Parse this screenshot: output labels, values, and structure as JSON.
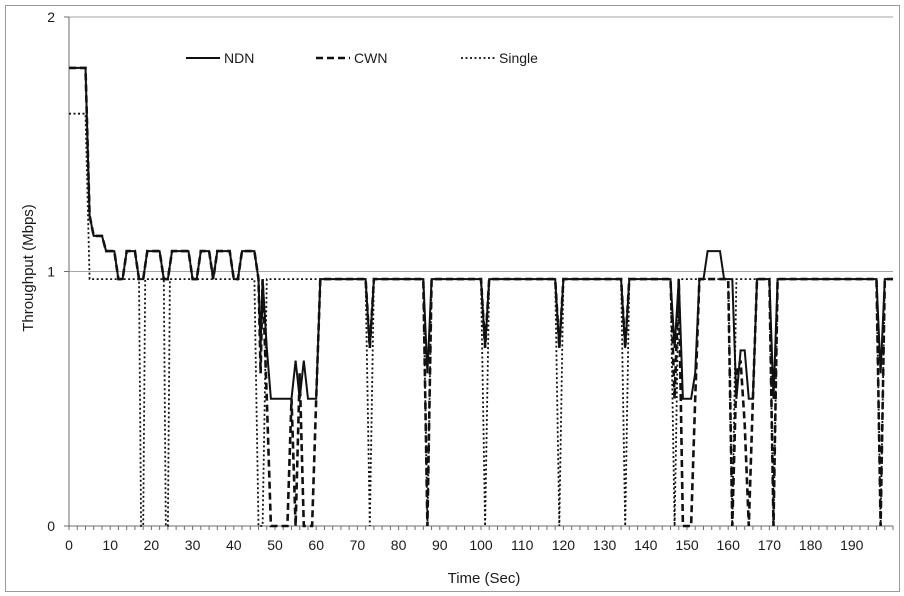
{
  "chart_data": {
    "type": "line",
    "title": "",
    "xlabel": "Time (Sec)",
    "ylabel": "Throughput (Mbps)",
    "xlim": [
      0,
      200
    ],
    "ylim": [
      0,
      2
    ],
    "x_ticks": [
      0,
      10,
      20,
      30,
      40,
      50,
      60,
      70,
      80,
      90,
      100,
      110,
      120,
      130,
      140,
      150,
      160,
      170,
      180,
      190
    ],
    "y_ticks": [
      0,
      1,
      2
    ],
    "grid": "horizontal major gridlines",
    "legend_position": "top",
    "series": [
      {
        "name": "NDN",
        "style": "solid",
        "points": [
          [
            0,
            1.8
          ],
          [
            4,
            1.8
          ],
          [
            5,
            1.22
          ],
          [
            6,
            1.14
          ],
          [
            8,
            1.14
          ],
          [
            9,
            1.08
          ],
          [
            11,
            1.08
          ],
          [
            12,
            0.97
          ],
          [
            13,
            0.97
          ],
          [
            14,
            1.08
          ],
          [
            16,
            1.08
          ],
          [
            17,
            0.97
          ],
          [
            18,
            0.97
          ],
          [
            19,
            1.08
          ],
          [
            22,
            1.08
          ],
          [
            23,
            0.97
          ],
          [
            24,
            0.97
          ],
          [
            25,
            1.08
          ],
          [
            29,
            1.08
          ],
          [
            30,
            0.97
          ],
          [
            31,
            0.97
          ],
          [
            32,
            1.08
          ],
          [
            34,
            1.08
          ],
          [
            35,
            0.97
          ],
          [
            36,
            1.08
          ],
          [
            39,
            1.08
          ],
          [
            40,
            0.97
          ],
          [
            41,
            0.97
          ],
          [
            42,
            1.08
          ],
          [
            45,
            1.08
          ],
          [
            46,
            0.97
          ],
          [
            46.5,
            0.7
          ],
          [
            47,
            0.97
          ],
          [
            48,
            0.7
          ],
          [
            49,
            0.5
          ],
          [
            54,
            0.5
          ],
          [
            55,
            0.65
          ],
          [
            56,
            0.5
          ],
          [
            57,
            0.65
          ],
          [
            58,
            0.5
          ],
          [
            60,
            0.5
          ],
          [
            61,
            0.97
          ],
          [
            72,
            0.97
          ],
          [
            73,
            0.7
          ],
          [
            74,
            0.97
          ],
          [
            86,
            0.97
          ],
          [
            87,
            0.6
          ],
          [
            88,
            0.97
          ],
          [
            100,
            0.97
          ],
          [
            101,
            0.7
          ],
          [
            102,
            0.97
          ],
          [
            118,
            0.97
          ],
          [
            119,
            0.7
          ],
          [
            120,
            0.97
          ],
          [
            134,
            0.97
          ],
          [
            135,
            0.7
          ],
          [
            136,
            0.97
          ],
          [
            146,
            0.97
          ],
          [
            147,
            0.7
          ],
          [
            148,
            0.97
          ],
          [
            149,
            0.5
          ],
          [
            151,
            0.5
          ],
          [
            152,
            0.6
          ],
          [
            153,
            0.97
          ],
          [
            154,
            0.97
          ],
          [
            155,
            1.08
          ],
          [
            158,
            1.08
          ],
          [
            159,
            0.97
          ],
          [
            161,
            0.97
          ],
          [
            162,
            0.5
          ],
          [
            163,
            0.69
          ],
          [
            164,
            0.69
          ],
          [
            165,
            0.5
          ],
          [
            166,
            0.5
          ],
          [
            167,
            0.97
          ],
          [
            170,
            0.97
          ],
          [
            171,
            0.5
          ],
          [
            172,
            0.97
          ],
          [
            196,
            0.97
          ],
          [
            197,
            0.6
          ],
          [
            198,
            0.97
          ],
          [
            200,
            0.97
          ]
        ]
      },
      {
        "name": "CWN",
        "style": "dashed",
        "points": [
          [
            0,
            1.8
          ],
          [
            4,
            1.8
          ],
          [
            5,
            1.22
          ],
          [
            6,
            1.14
          ],
          [
            8,
            1.14
          ],
          [
            9,
            1.08
          ],
          [
            11,
            1.08
          ],
          [
            12,
            0.97
          ],
          [
            13,
            0.97
          ],
          [
            14,
            1.08
          ],
          [
            16,
            1.08
          ],
          [
            17,
            0.97
          ],
          [
            18,
            0.97
          ],
          [
            19,
            1.08
          ],
          [
            22,
            1.08
          ],
          [
            23,
            0.97
          ],
          [
            24,
            0.97
          ],
          [
            25,
            1.08
          ],
          [
            29,
            1.08
          ],
          [
            30,
            0.97
          ],
          [
            31,
            0.97
          ],
          [
            32,
            1.08
          ],
          [
            34,
            1.08
          ],
          [
            35,
            0.97
          ],
          [
            36,
            1.08
          ],
          [
            39,
            1.08
          ],
          [
            40,
            0.97
          ],
          [
            41,
            0.97
          ],
          [
            42,
            1.08
          ],
          [
            45,
            1.08
          ],
          [
            46,
            0.97
          ],
          [
            46.5,
            0.6
          ],
          [
            47,
            0.97
          ],
          [
            48,
            0.5
          ],
          [
            49,
            0
          ],
          [
            53,
            0
          ],
          [
            54,
            0.5
          ],
          [
            55,
            0
          ],
          [
            56,
            0.6
          ],
          [
            57,
            0
          ],
          [
            59,
            0
          ],
          [
            60,
            0.5
          ],
          [
            61,
            0.97
          ],
          [
            72,
            0.97
          ],
          [
            73,
            0.7
          ],
          [
            74,
            0.97
          ],
          [
            86,
            0.97
          ],
          [
            87,
            0
          ],
          [
            88,
            0.97
          ],
          [
            100,
            0.97
          ],
          [
            101,
            0.7
          ],
          [
            102,
            0.97
          ],
          [
            118,
            0.97
          ],
          [
            119,
            0.7
          ],
          [
            120,
            0.97
          ],
          [
            134,
            0.97
          ],
          [
            135,
            0.7
          ],
          [
            136,
            0.97
          ],
          [
            146,
            0.97
          ],
          [
            147,
            0.5
          ],
          [
            148,
            0.97
          ],
          [
            149,
            0
          ],
          [
            151,
            0
          ],
          [
            152,
            0.5
          ],
          [
            153,
            0.97
          ],
          [
            159,
            0.97
          ],
          [
            160,
            0.97
          ],
          [
            161,
            0
          ],
          [
            162,
            0.6
          ],
          [
            163,
            0.65
          ],
          [
            164,
            0.4
          ],
          [
            165,
            0
          ],
          [
            166,
            0.5
          ],
          [
            167,
            0.97
          ],
          [
            170,
            0.97
          ],
          [
            171,
            0
          ],
          [
            172,
            0.97
          ],
          [
            196,
            0.97
          ],
          [
            197,
            0
          ],
          [
            198,
            0.97
          ],
          [
            200,
            0.97
          ]
        ]
      },
      {
        "name": "Single",
        "style": "dotted",
        "points": [
          [
            0,
            1.62
          ],
          [
            4,
            1.62
          ],
          [
            5,
            0.97
          ],
          [
            17,
            0.97
          ],
          [
            17.5,
            0
          ],
          [
            18,
            0
          ],
          [
            18.5,
            0.97
          ],
          [
            23,
            0.97
          ],
          [
            23.5,
            0
          ],
          [
            24,
            0
          ],
          [
            24.5,
            0.97
          ],
          [
            45,
            0.97
          ],
          [
            46,
            0
          ],
          [
            47,
            0
          ],
          [
            48,
            0.97
          ],
          [
            72,
            0.97
          ],
          [
            73,
            0
          ],
          [
            74,
            0.97
          ],
          [
            86,
            0.97
          ],
          [
            87,
            0
          ],
          [
            88,
            0.97
          ],
          [
            100,
            0.97
          ],
          [
            101,
            0
          ],
          [
            102,
            0.97
          ],
          [
            118,
            0.97
          ],
          [
            119,
            0
          ],
          [
            120,
            0.97
          ],
          [
            134,
            0.97
          ],
          [
            135,
            0
          ],
          [
            136,
            0.97
          ],
          [
            146,
            0.97
          ],
          [
            147,
            0
          ],
          [
            148,
            0.97
          ],
          [
            160,
            0.97
          ],
          [
            161,
            0
          ],
          [
            162,
            0.97
          ],
          [
            170,
            0.97
          ],
          [
            171,
            0
          ],
          [
            172,
            0.97
          ],
          [
            196,
            0.97
          ],
          [
            197,
            0
          ],
          [
            198,
            0.97
          ],
          [
            200,
            0.97
          ]
        ]
      }
    ]
  }
}
